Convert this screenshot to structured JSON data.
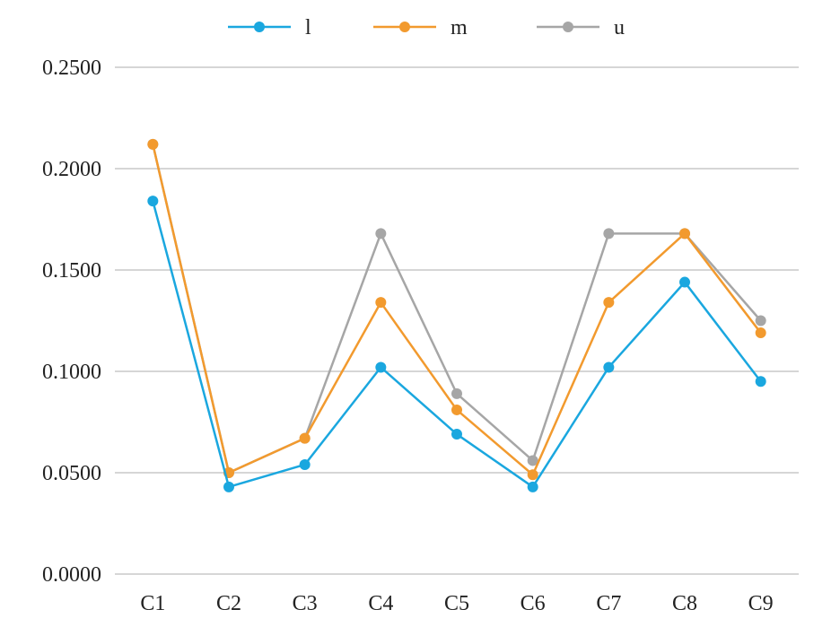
{
  "chart_data": {
    "type": "line",
    "categories": [
      "C1",
      "C2",
      "C3",
      "C4",
      "C5",
      "C6",
      "C7",
      "C8",
      "C9"
    ],
    "ylim": [
      0,
      0.25
    ],
    "yticks": [
      "0.0000",
      "0.0500",
      "0.1000",
      "0.1500",
      "0.2000",
      "0.2500"
    ],
    "grid": true,
    "legend_position": "top-center",
    "series": [
      {
        "name": "l",
        "color": "#1aa7df",
        "values": [
          0.184,
          0.043,
          0.054,
          0.102,
          0.069,
          0.043,
          0.102,
          0.144,
          0.095
        ]
      },
      {
        "name": "m",
        "color": "#f29a2e",
        "values": [
          0.212,
          0.05,
          0.067,
          0.134,
          0.081,
          0.049,
          0.134,
          0.168,
          0.119
        ]
      },
      {
        "name": "u",
        "color": "#a6a6a6",
        "values": [
          0.212,
          0.05,
          0.067,
          0.168,
          0.089,
          0.056,
          0.168,
          0.168,
          0.125
        ]
      }
    ]
  }
}
